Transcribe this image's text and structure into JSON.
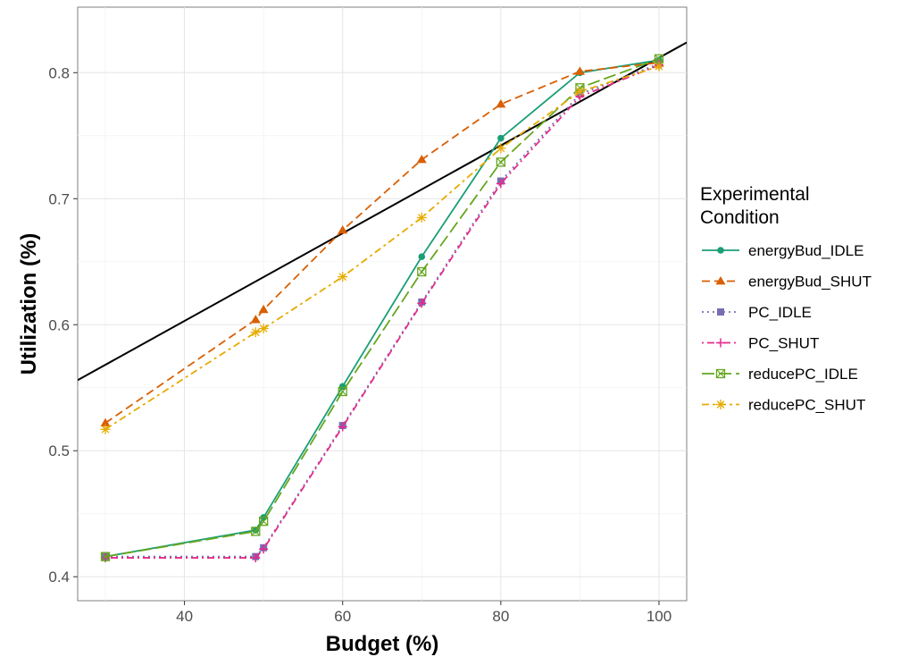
{
  "chart_data": {
    "type": "line",
    "title": "",
    "xlabel": "Budget (%)",
    "ylabel": "Utilization (%)",
    "xlim": [
      26.5,
      103.5
    ],
    "ylim": [
      0.381,
      0.852
    ],
    "x_ticks": [
      40,
      60,
      80,
      100
    ],
    "y_ticks": [
      0.4,
      0.5,
      0.6,
      0.7,
      0.8
    ],
    "x_tick_labels": [
      "40",
      "60",
      "80",
      "100"
    ],
    "y_tick_labels": [
      "0.4",
      "0.5",
      "0.6",
      "0.7",
      "0.8"
    ],
    "grid": true,
    "legend": {
      "position": "right",
      "title_lines": [
        "Experimental",
        "Condition"
      ]
    },
    "series": [
      {
        "name": "energyBud_IDLE",
        "color": "#1b9e77",
        "marker": "circle",
        "dash": "solid",
        "x": [
          30,
          49,
          50,
          60,
          70,
          80,
          90,
          100
        ],
        "y": [
          0.416,
          0.437,
          0.447,
          0.551,
          0.654,
          0.748,
          0.8,
          0.81
        ]
      },
      {
        "name": "energyBud_SHUT",
        "color": "#d95f02",
        "marker": "triangle",
        "dash": "dashed",
        "x": [
          30,
          49,
          50,
          60,
          70,
          80,
          90,
          100
        ],
        "y": [
          0.522,
          0.604,
          0.612,
          0.675,
          0.731,
          0.775,
          0.801,
          0.808
        ]
      },
      {
        "name": "PC_IDLE",
        "color": "#7570b3",
        "marker": "square",
        "dash": "dotted",
        "x": [
          30,
          49,
          50,
          60,
          70,
          80,
          90,
          100
        ],
        "y": [
          0.416,
          0.416,
          0.423,
          0.52,
          0.618,
          0.714,
          0.783,
          0.807
        ]
      },
      {
        "name": "PC_SHUT",
        "color": "#e7298a",
        "marker": "plus",
        "dash": "dotdash",
        "x": [
          30,
          49,
          50,
          60,
          70,
          80,
          90,
          100
        ],
        "y": [
          0.415,
          0.415,
          0.422,
          0.519,
          0.617,
          0.712,
          0.781,
          0.806
        ]
      },
      {
        "name": "reducePC_IDLE",
        "color": "#66a61e",
        "marker": "square-x",
        "dash": "longdash",
        "x": [
          30,
          49,
          50,
          60,
          70,
          80,
          90,
          100
        ],
        "y": [
          0.416,
          0.436,
          0.444,
          0.547,
          0.642,
          0.729,
          0.788,
          0.811
        ]
      },
      {
        "name": "reducePC_SHUT",
        "color": "#e6ab02",
        "marker": "asterisk",
        "dash": "twodash",
        "x": [
          30,
          49,
          50,
          60,
          70,
          80,
          90,
          100
        ],
        "y": [
          0.517,
          0.594,
          0.597,
          0.638,
          0.685,
          0.74,
          0.785,
          0.805
        ]
      }
    ],
    "reference_line": {
      "color": "#000000",
      "x": [
        26.5,
        103.5
      ],
      "y": [
        0.556,
        0.824
      ]
    }
  }
}
